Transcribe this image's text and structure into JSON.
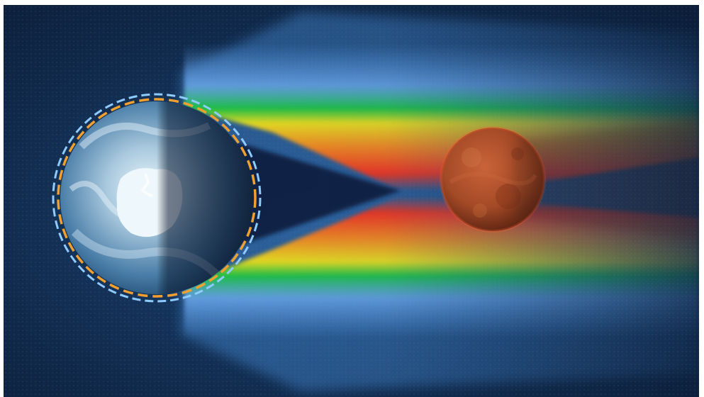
{
  "scene": {
    "subject": "earth-lunar-eclipse-illustration",
    "objects": [
      "earth",
      "earth-atmosphere-ring",
      "moon",
      "refracted-sunlight-bands"
    ],
    "colors": {
      "space_dark": "#0b1d38",
      "space_light": "#1f4f86",
      "band_blue": "#8ec4ff",
      "band_green": "#10c83a",
      "band_yellow": "#f2e313",
      "band_orange": "#ff8a12",
      "band_red": "#ff2a10",
      "moon": "#a34a26",
      "ring_orange": "#f0a030",
      "ring_blue": "#8ecbff",
      "earth_ice": "#d9ecf7",
      "earth_blue": "#2f5f8f"
    }
  }
}
